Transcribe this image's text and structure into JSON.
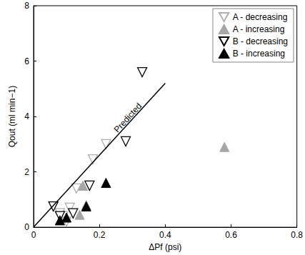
{
  "chart_data": {
    "type": "scatter",
    "x_label": "ΔPf (psi)",
    "y_label": "Qout (ml min−1)",
    "xlim": [
      0,
      0.8
    ],
    "xticks": [
      0,
      0.2,
      0.4,
      0.6,
      0.8
    ],
    "ylim": [
      0,
      8
    ],
    "yticks": [
      0,
      2,
      4,
      6,
      8
    ],
    "grid": false,
    "legend": "top-right",
    "series": [
      {
        "name": "A - decreasing",
        "color": "#b0b0b0",
        "marker": "triangle_down_open",
        "x": [
          0.22,
          0.18,
          0.13,
          0.11,
          0.09,
          0.1,
          0.08
        ],
        "values": [
          3.0,
          2.45,
          1.4,
          0.7,
          0.4,
          0.2,
          0.5
        ]
      },
      {
        "name": "A - increasing",
        "color": "#a6a6a6",
        "marker": "triangle_up",
        "x": [
          0.58,
          0.15,
          0.14,
          0.16
        ],
        "values": [
          2.9,
          1.5,
          0.45,
          0.8
        ]
      },
      {
        "name": "B - decreasing",
        "color": "#000000",
        "marker": "triangle_down_open",
        "x": [
          0.33,
          0.28,
          0.17,
          0.06,
          0.08,
          0.12
        ],
        "values": [
          5.6,
          3.1,
          1.5,
          0.75,
          0.4,
          0.5
        ]
      },
      {
        "name": "B - increasing",
        "color": "#000000",
        "marker": "triangle_up",
        "x": [
          0.22,
          0.16,
          0.1,
          0.08
        ],
        "values": [
          1.6,
          0.75,
          0.35,
          0.25
        ]
      },
      {
        "name": "Predicted",
        "type": "line",
        "color": "#000000",
        "line_style": "solid",
        "x": [
          0,
          0.4
        ],
        "values": [
          0,
          5.2
        ]
      }
    ]
  }
}
